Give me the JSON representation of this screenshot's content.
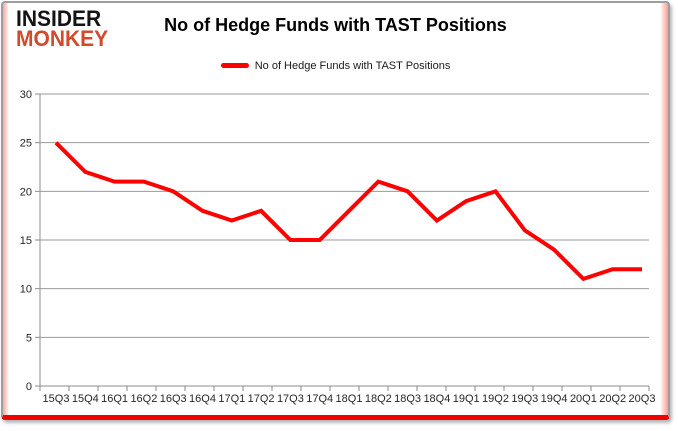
{
  "header": {
    "logo": {
      "line1": "INSIDER",
      "line2": "MONKEY",
      "line1_color": "#141414",
      "line2_color": "#d14a2c"
    },
    "title": "No of Hedge Funds with TAST Positions"
  },
  "legend": {
    "label": "No of Hedge Funds with TAST Positions",
    "swatch_color": "#ff0000"
  },
  "frame": {
    "bottom_bar_color": "#f20000",
    "edge_glow_color": "#ff5a46",
    "border_color": "#9e9e9e"
  },
  "chart_data": {
    "type": "line",
    "title": "No of Hedge Funds with TAST Positions",
    "series_name": "No of Hedge Funds with TAST Positions",
    "categories": [
      "15Q3",
      "15Q4",
      "16Q1",
      "16Q2",
      "16Q3",
      "16Q4",
      "17Q1",
      "17Q2",
      "17Q3",
      "17Q4",
      "18Q1",
      "18Q2",
      "18Q3",
      "18Q4",
      "19Q1",
      "19Q2",
      "19Q3",
      "19Q4",
      "20Q1",
      "20Q2",
      "20Q3"
    ],
    "values": [
      25,
      22,
      21,
      21,
      20,
      18,
      17,
      18,
      15,
      15,
      18,
      21,
      20,
      17,
      19,
      20,
      16,
      14,
      11,
      12,
      12
    ],
    "xlabel": "",
    "ylabel": "",
    "ylim": [
      0,
      30
    ],
    "yticks": [
      0,
      5,
      10,
      15,
      20,
      25,
      30
    ],
    "grid": true,
    "legend_position": "top",
    "line_color": "#ff0000",
    "line_width": 4,
    "grid_color": "#999999",
    "axis_color": "#8c8c8c",
    "label_color": "#262626",
    "tick_font_size": 11
  }
}
